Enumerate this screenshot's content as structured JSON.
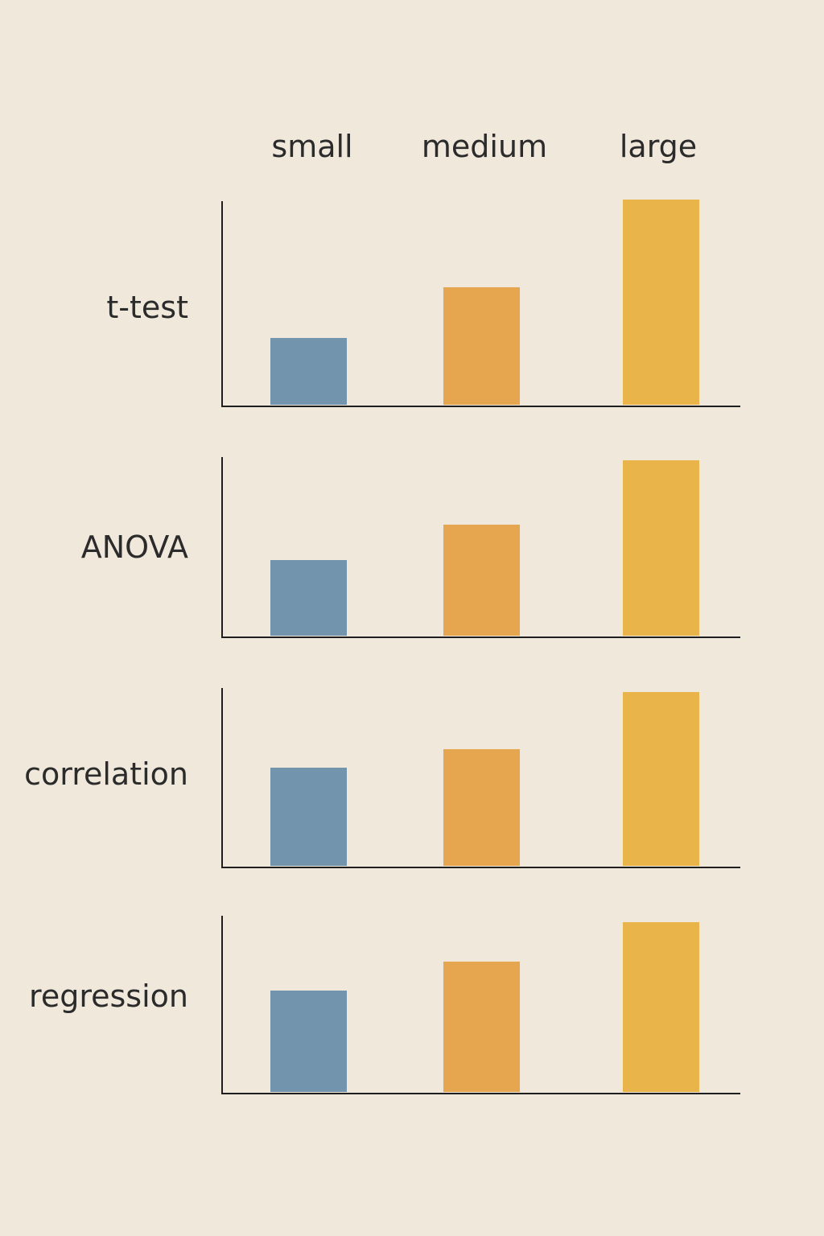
{
  "chart_data": {
    "type": "bar",
    "categories": [
      "small",
      "medium",
      "large"
    ],
    "colors": [
      "#7295ad",
      "#e5a64f",
      "#e9b54b"
    ],
    "ylim": [
      0,
      10
    ],
    "grid": false,
    "panels": [
      {
        "label": "t-test",
        "values": [
          3.2,
          5.6,
          9.8
        ]
      },
      {
        "label": "ANOVA",
        "values": [
          4.1,
          6.0,
          9.5
        ]
      },
      {
        "label": "correlation",
        "values": [
          5.3,
          6.3,
          9.4
        ]
      },
      {
        "label": "regression",
        "values": [
          5.6,
          7.2,
          9.4
        ]
      }
    ]
  }
}
